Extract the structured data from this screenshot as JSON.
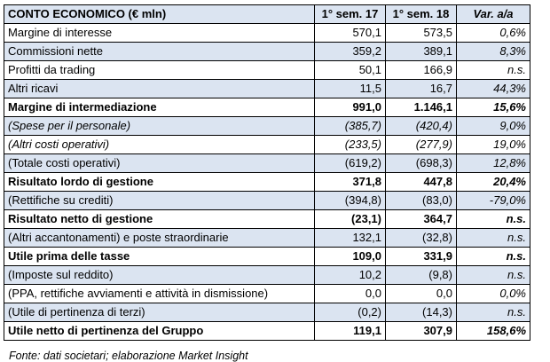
{
  "table": {
    "header": [
      "CONTO ECONOMICO (€ mln)",
      "1° sem. 17",
      "1° sem. 18",
      "Var. a/a"
    ],
    "rows": [
      {
        "label": "Margine di interesse",
        "v1": "570,1",
        "v2": "573,5",
        "var": "0,6%",
        "bold": false,
        "italic": false
      },
      {
        "label": "Commissioni nette",
        "v1": "359,2",
        "v2": "389,1",
        "var": "8,3%",
        "bold": false,
        "italic": false
      },
      {
        "label": "Profitti da trading",
        "v1": "50,1",
        "v2": "166,9",
        "var": "n.s.",
        "bold": false,
        "italic": false
      },
      {
        "label": "Altri ricavi",
        "v1": "11,5",
        "v2": "16,7",
        "var": "44,3%",
        "bold": false,
        "italic": false
      },
      {
        "label": "Margine di intermediazione",
        "v1": "991,0",
        "v2": "1.146,1",
        "var": "15,6%",
        "bold": true,
        "italic": false
      },
      {
        "label": "(Spese per il personale)",
        "v1": "(385,7)",
        "v2": "(420,4)",
        "var": "9,0%",
        "bold": false,
        "italic": true
      },
      {
        "label": "(Altri costi operativi)",
        "v1": "(233,5)",
        "v2": "(277,9)",
        "var": "19,0%",
        "bold": false,
        "italic": true
      },
      {
        "label": "(Totale costi operativi)",
        "v1": "(619,2)",
        "v2": "(698,3)",
        "var": "12,8%",
        "bold": false,
        "italic": false
      },
      {
        "label": "Risultato lordo di gestione",
        "v1": "371,8",
        "v2": "447,8",
        "var": "20,4%",
        "bold": true,
        "italic": false
      },
      {
        "label": "(Rettifiche su crediti)",
        "v1": "(394,8)",
        "v2": "(83,0)",
        "var": "-79,0%",
        "bold": false,
        "italic": false
      },
      {
        "label": "Risultato netto di gestione",
        "v1": "(23,1)",
        "v2": "364,7",
        "var": "n.s.",
        "bold": true,
        "italic": false
      },
      {
        "label": "(Altri accantonamenti) e poste straordinarie",
        "v1": "132,1",
        "v2": "(32,8)",
        "var": "n.s.",
        "bold": false,
        "italic": false
      },
      {
        "label": "Utile prima delle tasse",
        "v1": "109,0",
        "v2": "331,9",
        "var": "n.s.",
        "bold": true,
        "italic": false
      },
      {
        "label": "(Imposte sul reddito)",
        "v1": "10,2",
        "v2": "(9,8)",
        "var": "n.s.",
        "bold": false,
        "italic": false
      },
      {
        "label": "(PPA, rettifiche avviamenti e attività in dismissione)",
        "v1": "0,0",
        "v2": "0,0",
        "var": "0,0%",
        "bold": false,
        "italic": false
      },
      {
        "label": "(Utile di pertinenza di terzi)",
        "v1": "(0,2)",
        "v2": "(14,3)",
        "var": "n.s.",
        "bold": false,
        "italic": false
      },
      {
        "label": "Utile netto di pertinenza del Gruppo",
        "v1": "119,1",
        "v2": "307,9",
        "var": "158,6%",
        "bold": true,
        "italic": false
      }
    ]
  },
  "source": "Fonte: dati societari; elaborazione Market Insight",
  "colors": {
    "row_shade": "#dbe4f1",
    "border": "#000000"
  }
}
